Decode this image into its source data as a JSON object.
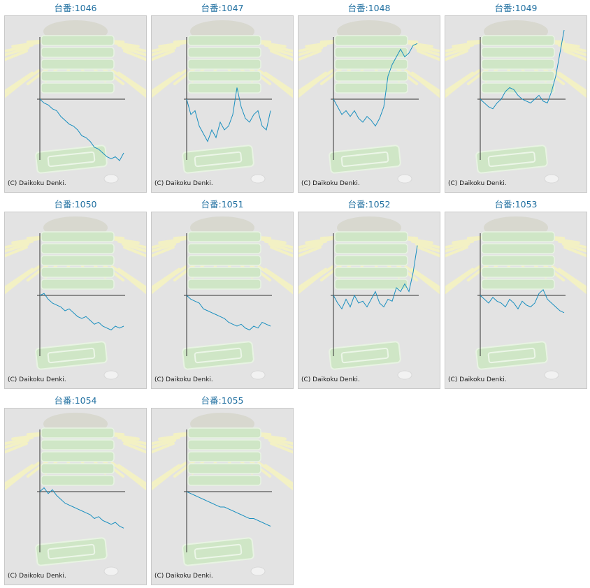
{
  "colors": {
    "line": "#1a8fbf",
    "title": "#1f6fa0",
    "axis": "#333333",
    "background": "#e3e3e3"
  },
  "watermark": "(C) Daikoku Denki.",
  "chart_data": [
    {
      "type": "line",
      "title": "台番:1046",
      "x": [
        0,
        5,
        10,
        15,
        20,
        25,
        30,
        35,
        40,
        45,
        50,
        55,
        60,
        65,
        70,
        75,
        80,
        85,
        90,
        95,
        100
      ],
      "values": [
        0,
        -10,
        -15,
        -25,
        -30,
        -45,
        -55,
        -65,
        -70,
        -80,
        -95,
        -100,
        -110,
        -125,
        -130,
        -140,
        -150,
        -155,
        -150,
        -160,
        -140
      ]
    },
    {
      "type": "line",
      "title": "台番:1047",
      "x": [
        0,
        5,
        10,
        15,
        20,
        25,
        30,
        35,
        40,
        45,
        50,
        55,
        60,
        65,
        70,
        75,
        80,
        85,
        90,
        95,
        100
      ],
      "values": [
        0,
        -40,
        -30,
        -70,
        -90,
        -110,
        -80,
        -100,
        -60,
        -80,
        -70,
        -40,
        30,
        -20,
        -50,
        -60,
        -40,
        -30,
        -70,
        -80,
        -30
      ]
    },
    {
      "type": "line",
      "title": "台番:1048",
      "x": [
        0,
        5,
        10,
        15,
        20,
        25,
        30,
        35,
        40,
        45,
        50,
        55,
        60,
        65,
        70,
        75,
        80,
        85,
        90,
        95,
        100
      ],
      "values": [
        0,
        -20,
        -40,
        -30,
        -45,
        -30,
        -50,
        -60,
        -45,
        -55,
        -70,
        -50,
        -20,
        60,
        90,
        110,
        130,
        110,
        120,
        140,
        145
      ]
    },
    {
      "type": "line",
      "title": "台番:1049",
      "x": [
        0,
        5,
        10,
        15,
        20,
        25,
        30,
        35,
        40,
        45,
        50,
        55,
        60,
        65,
        70,
        75,
        80,
        85,
        90,
        95,
        100
      ],
      "values": [
        0,
        -10,
        -20,
        -25,
        -10,
        0,
        20,
        30,
        25,
        10,
        0,
        -5,
        -10,
        0,
        10,
        -5,
        -10,
        20,
        60,
        120,
        180
      ]
    },
    {
      "type": "line",
      "title": "台番:1050",
      "x": [
        0,
        5,
        10,
        15,
        20,
        25,
        30,
        35,
        40,
        45,
        50,
        55,
        60,
        65,
        70,
        75,
        80,
        85,
        90,
        95,
        100
      ],
      "values": [
        0,
        5,
        -10,
        -20,
        -25,
        -30,
        -40,
        -35,
        -45,
        -55,
        -60,
        -55,
        -65,
        -75,
        -70,
        -80,
        -85,
        -90,
        -80,
        -85,
        -80
      ]
    },
    {
      "type": "line",
      "title": "台番:1051",
      "x": [
        0,
        5,
        10,
        15,
        20,
        25,
        30,
        35,
        40,
        45,
        50,
        55,
        60,
        65,
        70,
        75,
        80,
        85,
        90,
        95,
        100
      ],
      "values": [
        0,
        -10,
        -15,
        -20,
        -35,
        -40,
        -45,
        -50,
        -55,
        -60,
        -70,
        -75,
        -80,
        -75,
        -85,
        -90,
        -80,
        -85,
        -70,
        -75,
        -80
      ]
    },
    {
      "type": "line",
      "title": "台番:1052",
      "x": [
        0,
        5,
        10,
        15,
        20,
        25,
        30,
        35,
        40,
        45,
        50,
        55,
        60,
        65,
        70,
        75,
        80,
        85,
        90,
        95,
        100
      ],
      "values": [
        0,
        -20,
        -35,
        -10,
        -30,
        0,
        -20,
        -15,
        -30,
        -10,
        10,
        -20,
        -30,
        -10,
        -15,
        20,
        10,
        30,
        10,
        60,
        130
      ]
    },
    {
      "type": "line",
      "title": "台番:1053",
      "x": [
        0,
        5,
        10,
        15,
        20,
        25,
        30,
        35,
        40,
        45,
        50,
        55,
        60,
        65,
        70,
        75,
        80,
        85,
        90,
        95,
        100
      ],
      "values": [
        0,
        -10,
        -20,
        -5,
        -15,
        -20,
        -30,
        -10,
        -20,
        -35,
        -15,
        -25,
        -30,
        -20,
        5,
        15,
        -10,
        -20,
        -30,
        -40,
        -45
      ]
    },
    {
      "type": "line",
      "title": "台番:1054",
      "x": [
        0,
        5,
        10,
        15,
        20,
        25,
        30,
        35,
        40,
        45,
        50,
        55,
        60,
        65,
        70,
        75,
        80,
        85,
        90,
        95,
        100
      ],
      "values": [
        0,
        10,
        -5,
        5,
        -10,
        -20,
        -30,
        -35,
        -40,
        -45,
        -50,
        -55,
        -60,
        -70,
        -65,
        -75,
        -80,
        -85,
        -80,
        -90,
        -95
      ]
    },
    {
      "type": "line",
      "title": "台番:1055",
      "x": [
        0,
        5,
        10,
        15,
        20,
        25,
        30,
        35,
        40,
        45,
        50,
        55,
        60,
        65,
        70,
        75,
        80,
        85,
        90,
        95,
        100
      ],
      "values": [
        0,
        -5,
        -10,
        -15,
        -20,
        -25,
        -30,
        -35,
        -40,
        -40,
        -45,
        -50,
        -55,
        -60,
        -65,
        -70,
        -70,
        -75,
        -80,
        -85,
        -90
      ]
    }
  ]
}
